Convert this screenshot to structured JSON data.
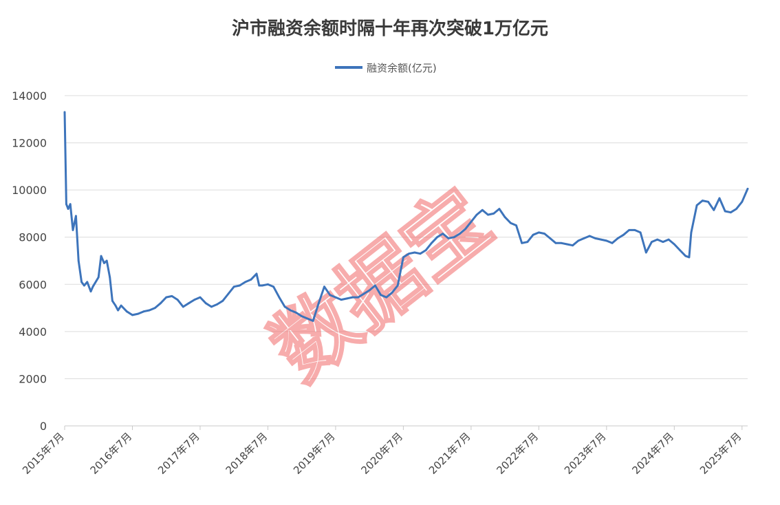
{
  "chart_data": {
    "type": "line",
    "title": "沪市融资余额时隔十年再次突破1万亿元",
    "xlabel": "",
    "ylabel": "",
    "ylim": [
      0,
      14000
    ],
    "yticks": [
      0,
      2000,
      4000,
      6000,
      8000,
      10000,
      12000,
      14000
    ],
    "xlim": [
      "2015-07",
      "2025-08"
    ],
    "xticks": [
      "2015年7月",
      "2016年7月",
      "2017年7月",
      "2018年7月",
      "2019年7月",
      "2020年7月",
      "2021年7月",
      "2022年7月",
      "2023年7月",
      "2024年7月",
      "2025年7月"
    ],
    "grid": "horizontal",
    "legend_position": "top-center",
    "watermark": "数据宝",
    "series": [
      {
        "name": "融资余额(亿元)",
        "color": "#3d74bb",
        "points": [
          [
            "2015-07",
            13300
          ],
          [
            "2015-07-10",
            9400
          ],
          [
            "2015-07-20",
            9200
          ],
          [
            "2015-08",
            9400
          ],
          [
            "2015-08-15",
            8300
          ],
          [
            "2015-09",
            8900
          ],
          [
            "2015-09-15",
            7000
          ],
          [
            "2015-10",
            6100
          ],
          [
            "2015-10-15",
            5950
          ],
          [
            "2015-11",
            6100
          ],
          [
            "2015-11-20",
            5700
          ],
          [
            "2015-12",
            5900
          ],
          [
            "2016-01",
            6300
          ],
          [
            "2016-01-15",
            7200
          ],
          [
            "2016-02",
            6900
          ],
          [
            "2016-02-15",
            7000
          ],
          [
            "2016-03",
            6300
          ],
          [
            "2016-03-15",
            5300
          ],
          [
            "2016-04",
            5100
          ],
          [
            "2016-04-15",
            4900
          ],
          [
            "2016-05",
            5100
          ],
          [
            "2016-06",
            4850
          ],
          [
            "2016-07",
            4700
          ],
          [
            "2016-08",
            4750
          ],
          [
            "2016-09",
            4850
          ],
          [
            "2016-10",
            4900
          ],
          [
            "2016-11",
            5000
          ],
          [
            "2016-12",
            5200
          ],
          [
            "2017-01",
            5450
          ],
          [
            "2017-02",
            5500
          ],
          [
            "2017-03",
            5350
          ],
          [
            "2017-04",
            5050
          ],
          [
            "2017-05",
            5200
          ],
          [
            "2017-06",
            5350
          ],
          [
            "2017-07",
            5450
          ],
          [
            "2017-08",
            5200
          ],
          [
            "2017-09",
            5050
          ],
          [
            "2017-10",
            5150
          ],
          [
            "2017-11",
            5300
          ],
          [
            "2017-12",
            5600
          ],
          [
            "2018-01",
            5900
          ],
          [
            "2018-02",
            5950
          ],
          [
            "2018-03",
            6100
          ],
          [
            "2018-04",
            6200
          ],
          [
            "2018-05",
            6450
          ],
          [
            "2018-05-15",
            5950
          ],
          [
            "2018-06",
            5950
          ],
          [
            "2018-07",
            6000
          ],
          [
            "2018-08",
            5900
          ],
          [
            "2018-09",
            5450
          ],
          [
            "2018-10",
            5050
          ],
          [
            "2018-11",
            4900
          ],
          [
            "2018-12",
            4800
          ],
          [
            "2019-01",
            4650
          ],
          [
            "2019-02",
            4550
          ],
          [
            "2019-03",
            4450
          ],
          [
            "2019-04",
            5200
          ],
          [
            "2019-05",
            5900
          ],
          [
            "2019-06",
            5550
          ],
          [
            "2019-07",
            5450
          ],
          [
            "2019-08",
            5350
          ],
          [
            "2019-09",
            5400
          ],
          [
            "2019-10",
            5450
          ],
          [
            "2019-11",
            5450
          ],
          [
            "2019-12",
            5600
          ],
          [
            "2020-01",
            5750
          ],
          [
            "2020-02",
            5950
          ],
          [
            "2020-03",
            5550
          ],
          [
            "2020-04",
            5450
          ],
          [
            "2020-05",
            5650
          ],
          [
            "2020-06",
            5950
          ],
          [
            "2020-07",
            7150
          ],
          [
            "2020-08",
            7300
          ],
          [
            "2020-09",
            7350
          ],
          [
            "2020-10",
            7300
          ],
          [
            "2020-11",
            7450
          ],
          [
            "2020-12",
            7750
          ],
          [
            "2021-01",
            8000
          ],
          [
            "2021-02",
            8150
          ],
          [
            "2021-03",
            7950
          ],
          [
            "2021-04",
            8000
          ],
          [
            "2021-05",
            8150
          ],
          [
            "2021-06",
            8350
          ],
          [
            "2021-07",
            8650
          ],
          [
            "2021-08",
            8950
          ],
          [
            "2021-09",
            9150
          ],
          [
            "2021-10",
            8950
          ],
          [
            "2021-11",
            9000
          ],
          [
            "2021-12",
            9200
          ],
          [
            "2022-01",
            8850
          ],
          [
            "2022-02",
            8600
          ],
          [
            "2022-03",
            8500
          ],
          [
            "2022-04",
            7750
          ],
          [
            "2022-05",
            7800
          ],
          [
            "2022-06",
            8100
          ],
          [
            "2022-07",
            8200
          ],
          [
            "2022-08",
            8150
          ],
          [
            "2022-09",
            7950
          ],
          [
            "2022-10",
            7750
          ],
          [
            "2022-11",
            7750
          ],
          [
            "2022-12",
            7700
          ],
          [
            "2023-01",
            7650
          ],
          [
            "2023-02",
            7850
          ],
          [
            "2023-03",
            7950
          ],
          [
            "2023-04",
            8050
          ],
          [
            "2023-05",
            7950
          ],
          [
            "2023-06",
            7900
          ],
          [
            "2023-07",
            7850
          ],
          [
            "2023-08",
            7750
          ],
          [
            "2023-09",
            7950
          ],
          [
            "2023-10",
            8100
          ],
          [
            "2023-11",
            8300
          ],
          [
            "2023-12",
            8300
          ],
          [
            "2024-01",
            8200
          ],
          [
            "2024-02",
            7350
          ],
          [
            "2024-03",
            7800
          ],
          [
            "2024-04",
            7900
          ],
          [
            "2024-05",
            7800
          ],
          [
            "2024-06",
            7900
          ],
          [
            "2024-07",
            7700
          ],
          [
            "2024-08",
            7450
          ],
          [
            "2024-09",
            7200
          ],
          [
            "2024-09-20",
            7150
          ],
          [
            "2024-10",
            8200
          ],
          [
            "2024-11",
            9350
          ],
          [
            "2024-12",
            9550
          ],
          [
            "2025-01",
            9500
          ],
          [
            "2025-02",
            9150
          ],
          [
            "2025-03",
            9650
          ],
          [
            "2025-04",
            9100
          ],
          [
            "2025-05",
            9050
          ],
          [
            "2025-06",
            9200
          ],
          [
            "2025-07",
            9500
          ],
          [
            "2025-08",
            10050
          ]
        ]
      }
    ]
  }
}
